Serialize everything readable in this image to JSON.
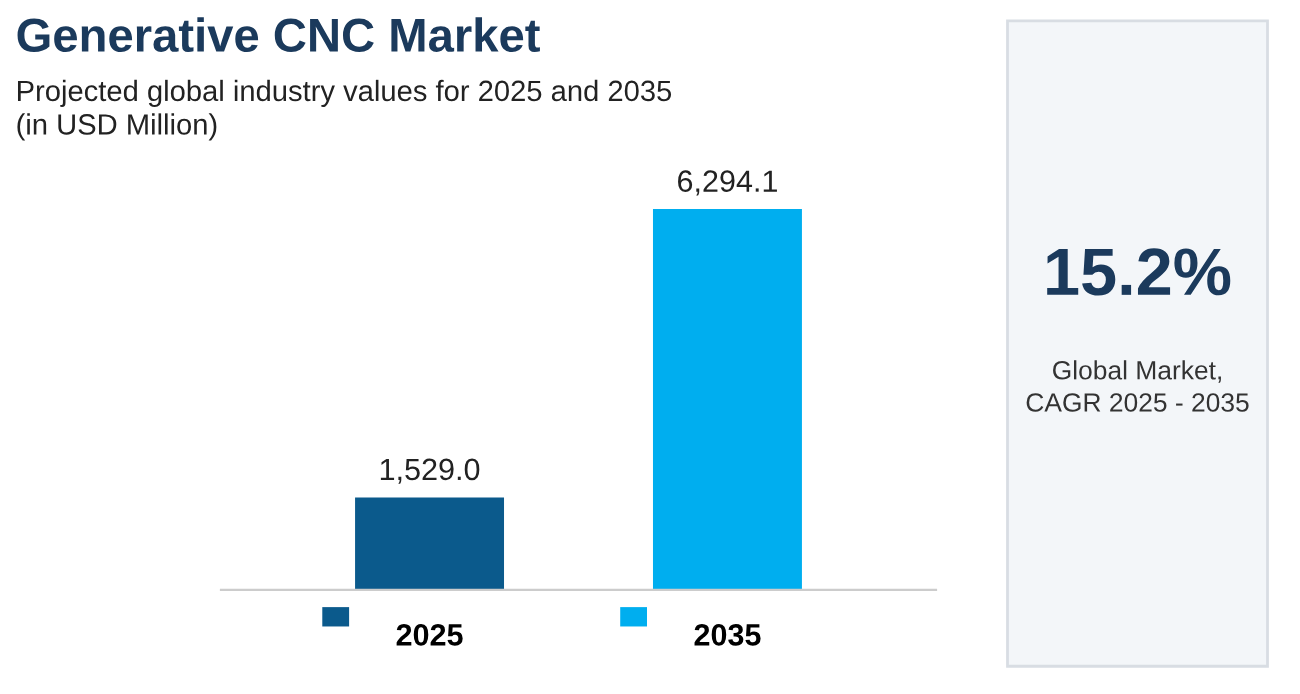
{
  "chart_data": {
    "type": "bar",
    "title": "Generative CNC Market",
    "subtitle": "Projected global industry values for 2025 and 2035\n(in USD Million)",
    "categories": [
      "2025",
      "2035"
    ],
    "values": [
      1529.0,
      6294.1
    ],
    "colors": [
      "#0b5a8c",
      "#00aeef"
    ],
    "value_labels": [
      "1,529.0",
      "6,294.1"
    ],
    "annotations": [
      "15.2%",
      "Global Market,\nCAGR 2025 - 2035"
    ]
  }
}
